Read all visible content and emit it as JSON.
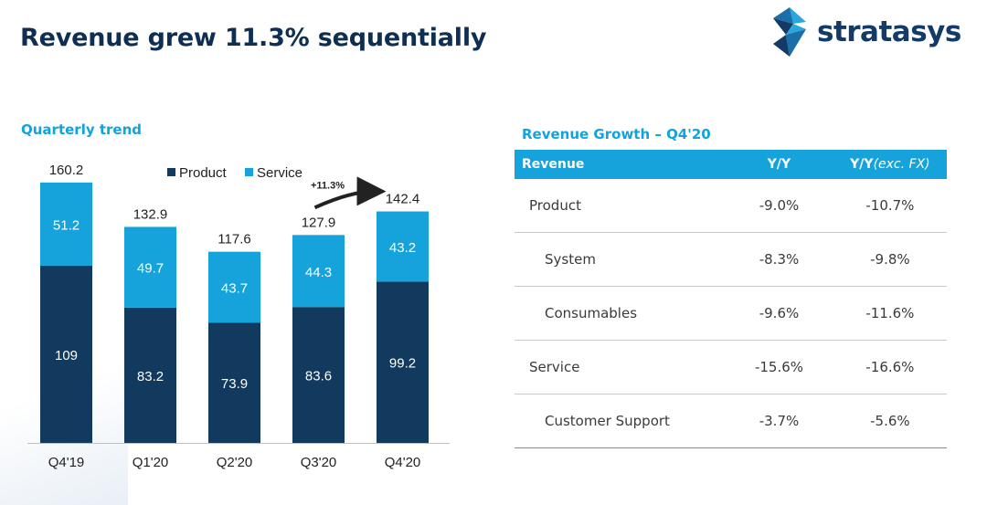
{
  "page": {
    "title": "Revenue grew 11.3% sequentially"
  },
  "logo": {
    "text": "stratasys"
  },
  "colors": {
    "title": "#0e2f52",
    "product": "#113a5e",
    "service": "#16a3dc",
    "accent": "#12a3de"
  },
  "chart_section": {
    "heading": "Quarterly trend"
  },
  "chart_data": {
    "type": "bar",
    "stacked": true,
    "categories": [
      "Q4'19",
      "Q1'20",
      "Q2'20",
      "Q3'20",
      "Q4'20"
    ],
    "series": [
      {
        "name": "Product",
        "values": [
          109,
          83.2,
          73.9,
          83.6,
          99.2
        ]
      },
      {
        "name": "Service",
        "values": [
          51.2,
          49.7,
          43.7,
          44.3,
          43.2
        ]
      }
    ],
    "totals": [
      160.2,
      132.9,
      117.6,
      127.9,
      142.4
    ],
    "legend_position": "top",
    "annotation": {
      "text": "+11.3%",
      "from": "Q3'20",
      "to": "Q4'20"
    },
    "grid": false
  },
  "table_section": {
    "heading": "Revenue Growth – Q4'20",
    "header": {
      "col0": "Revenue",
      "col1": "Y/Y",
      "col2_main": "Y/Y",
      "col2_sub": "(exc. FX)"
    },
    "rows": [
      {
        "label": "Product",
        "yy": "-9.0%",
        "yy_exc_fx": "-10.7%"
      },
      {
        "label": "System",
        "yy": "-8.3%",
        "yy_exc_fx": "-9.8%"
      },
      {
        "label": "Consumables",
        "yy": "-9.6%",
        "yy_exc_fx": "-11.6%"
      },
      {
        "label": "Service",
        "yy": "-15.6%",
        "yy_exc_fx": "-16.6%"
      },
      {
        "label": "Customer Support",
        "yy": "-3.7%",
        "yy_exc_fx": "-5.6%"
      }
    ]
  }
}
